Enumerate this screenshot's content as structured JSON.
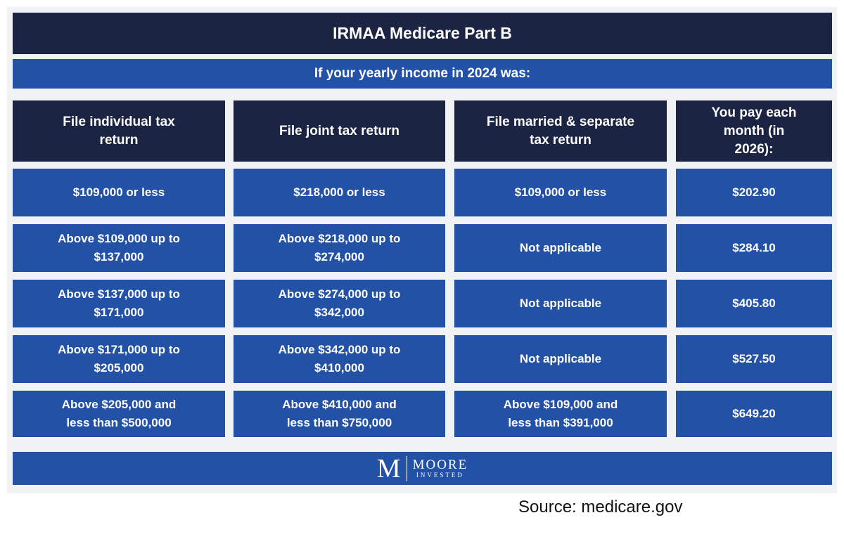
{
  "header": {
    "title": "IRMAA Medicare Part B",
    "subtitle": "If your yearly income in 2024 was:"
  },
  "table": {
    "columns": [
      "File individual tax return",
      "File joint tax return",
      "File married & separate tax return",
      "You pay each month (in 2026):"
    ],
    "rows": [
      [
        "$109,000 or less",
        "$218,000 or less",
        "$109,000 or less",
        "$202.90"
      ],
      [
        "Above $109,000 up to $137,000",
        "Above $218,000 up to $274,000",
        "Not applicable",
        "$284.10"
      ],
      [
        "Above $137,000 up to $171,000",
        "Above $274,000 up to $342,000",
        "Not applicable",
        "$405.80"
      ],
      [
        "Above $171,000 up to $205,000",
        "Above $342,000 up to $410,000",
        "Not applicable",
        "$527.50"
      ],
      [
        "Above $205,000 and less than $500,000",
        "Above $410,000 and less than $750,000",
        "Above $109,000 and less than $391,000",
        "$649.20"
      ]
    ]
  },
  "logo": {
    "mark": "M",
    "name": "MOORE",
    "tagline": "INVESTED"
  },
  "source": "Source: medicare.gov"
}
